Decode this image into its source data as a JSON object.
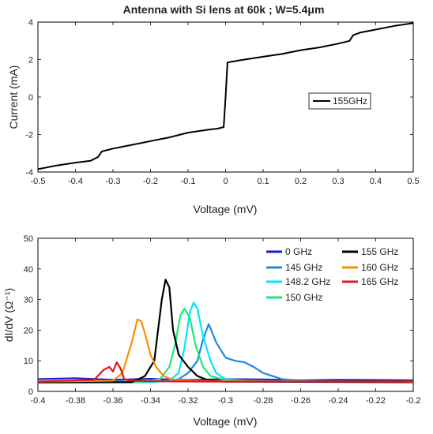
{
  "chart_data": [
    {
      "type": "line",
      "title": "Antenna with Si lens at 60k ; W=5.4μm",
      "xlabel": "Voltage (mV)",
      "ylabel": "Current (mA)",
      "xlim": [
        -0.5,
        0.5
      ],
      "ylim": [
        -4,
        4
      ],
      "xticks": [
        -0.5,
        -0.4,
        -0.3,
        -0.2,
        -0.1,
        0,
        0.1,
        0.2,
        0.3,
        0.4,
        0.5
      ],
      "yticks": [
        -4,
        -2,
        0,
        2,
        4
      ],
      "grid": false,
      "legend_position": "center-right",
      "series": [
        {
          "name": "155GHz",
          "color": "#000000",
          "x": [
            -0.5,
            -0.45,
            -0.4,
            -0.36,
            -0.34,
            -0.33,
            -0.3,
            -0.25,
            -0.2,
            -0.15,
            -0.12,
            -0.1,
            -0.05,
            -0.02,
            -0.005,
            0,
            0.005,
            0.02,
            0.05,
            0.1,
            0.15,
            0.2,
            0.25,
            0.3,
            0.33,
            0.34,
            0.36,
            0.4,
            0.45,
            0.5
          ],
          "y": [
            -3.85,
            -3.65,
            -3.5,
            -3.4,
            -3.2,
            -2.9,
            -2.75,
            -2.55,
            -2.35,
            -2.15,
            -2.0,
            -1.9,
            -1.75,
            -1.68,
            -1.6,
            0.0,
            1.85,
            1.9,
            2.0,
            2.15,
            2.3,
            2.5,
            2.65,
            2.85,
            3.0,
            3.3,
            3.45,
            3.6,
            3.8,
            3.95
          ]
        }
      ]
    },
    {
      "type": "line",
      "title": "",
      "xlabel": "Voltage (mV)",
      "ylabel": "dI/dV (Ω⁻¹)",
      "xlim": [
        -0.4,
        -0.2
      ],
      "ylim": [
        0,
        50
      ],
      "xticks": [
        -0.4,
        -0.38,
        -0.36,
        -0.34,
        -0.32,
        -0.3,
        -0.28,
        -0.26,
        -0.24,
        -0.22,
        -0.2
      ],
      "yticks": [
        0,
        10,
        20,
        30,
        40,
        50
      ],
      "grid": false,
      "legend_position": "top-right",
      "series": [
        {
          "name": "0 GHz",
          "color": "#1a1ad6",
          "x": [
            -0.4,
            -0.38,
            -0.36,
            -0.34,
            -0.32,
            -0.3,
            -0.28,
            -0.26,
            -0.24,
            -0.22,
            -0.2
          ],
          "y": [
            4.0,
            4.3,
            3.8,
            4.1,
            3.7,
            4.0,
            3.9,
            3.6,
            3.8,
            3.7,
            3.6
          ]
        },
        {
          "name": "145 GHz",
          "color": "#1e88e5",
          "x": [
            -0.4,
            -0.36,
            -0.34,
            -0.33,
            -0.325,
            -0.32,
            -0.315,
            -0.312,
            -0.309,
            -0.305,
            -0.3,
            -0.295,
            -0.29,
            -0.285,
            -0.28,
            -0.275,
            -0.27,
            -0.26,
            -0.24,
            -0.2
          ],
          "y": [
            3.0,
            3.2,
            3.3,
            3.5,
            4.0,
            6.0,
            10.0,
            17.0,
            22.0,
            16.0,
            11.0,
            10.0,
            9.5,
            8.0,
            6.0,
            5.0,
            4.0,
            3.5,
            3.2,
            3.0
          ]
        },
        {
          "name": "148.2 GHz",
          "color": "#00e5ff",
          "x": [
            -0.4,
            -0.34,
            -0.33,
            -0.325,
            -0.322,
            -0.319,
            -0.317,
            -0.315,
            -0.312,
            -0.308,
            -0.305,
            -0.3,
            -0.29,
            -0.26,
            -0.2
          ],
          "y": [
            2.8,
            3.0,
            3.5,
            6.0,
            14.0,
            26.0,
            29.0,
            27.0,
            18.0,
            10.0,
            6.0,
            4.0,
            3.5,
            3.2,
            3.0
          ]
        },
        {
          "name": "150 GHz",
          "color": "#1de87a",
          "x": [
            -0.4,
            -0.345,
            -0.335,
            -0.33,
            -0.327,
            -0.324,
            -0.322,
            -0.319,
            -0.316,
            -0.312,
            -0.308,
            -0.3,
            -0.28,
            -0.2
          ],
          "y": [
            3.0,
            3.0,
            4.0,
            8.0,
            15.0,
            25.0,
            27.0,
            24.0,
            15.0,
            8.0,
            5.0,
            3.8,
            3.3,
            3.0
          ]
        },
        {
          "name": "155 GHz",
          "color": "#000000",
          "x": [
            -0.4,
            -0.35,
            -0.343,
            -0.338,
            -0.336,
            -0.334,
            -0.332,
            -0.33,
            -0.328,
            -0.325,
            -0.32,
            -0.315,
            -0.31,
            -0.3,
            -0.2
          ],
          "y": [
            3.0,
            3.0,
            5.0,
            10.0,
            20.0,
            30.0,
            36.5,
            34.0,
            20.0,
            12.0,
            8.0,
            5.0,
            3.8,
            3.2,
            3.0
          ]
        },
        {
          "name": "160 GHz",
          "color": "#ff8c00",
          "x": [
            -0.4,
            -0.36,
            -0.355,
            -0.35,
            -0.347,
            -0.345,
            -0.343,
            -0.34,
            -0.337,
            -0.333,
            -0.328,
            -0.32,
            -0.3,
            -0.2
          ],
          "y": [
            3.2,
            3.5,
            6.0,
            16.0,
            23.5,
            23.0,
            19.0,
            12.0,
            8.0,
            5.0,
            3.8,
            3.5,
            3.3,
            3.2
          ]
        },
        {
          "name": "165 GHz",
          "color": "#e8101a",
          "x": [
            -0.4,
            -0.37,
            -0.365,
            -0.362,
            -0.36,
            -0.358,
            -0.356,
            -0.354,
            -0.35,
            -0.34,
            -0.3,
            -0.2
          ],
          "y": [
            3.2,
            3.8,
            7.0,
            8.0,
            6.5,
            9.5,
            7.5,
            4.0,
            3.5,
            3.3,
            3.2,
            3.3
          ]
        }
      ]
    }
  ]
}
